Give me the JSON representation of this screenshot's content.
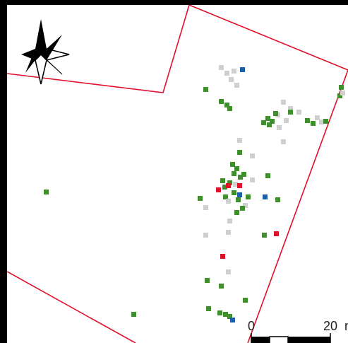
{
  "map": {
    "colors": {
      "frame": "#000000",
      "boundary": "#e0102a",
      "green": "#3f8f2f",
      "gray": "#cfcfcf",
      "red": "#e0102a",
      "blue": "#1f5fa8"
    },
    "scale_bar": {
      "label_start": "0",
      "label_end": "20",
      "label_unit_fragment": "n"
    },
    "north_arrow": "north-arrow-icon"
  }
}
